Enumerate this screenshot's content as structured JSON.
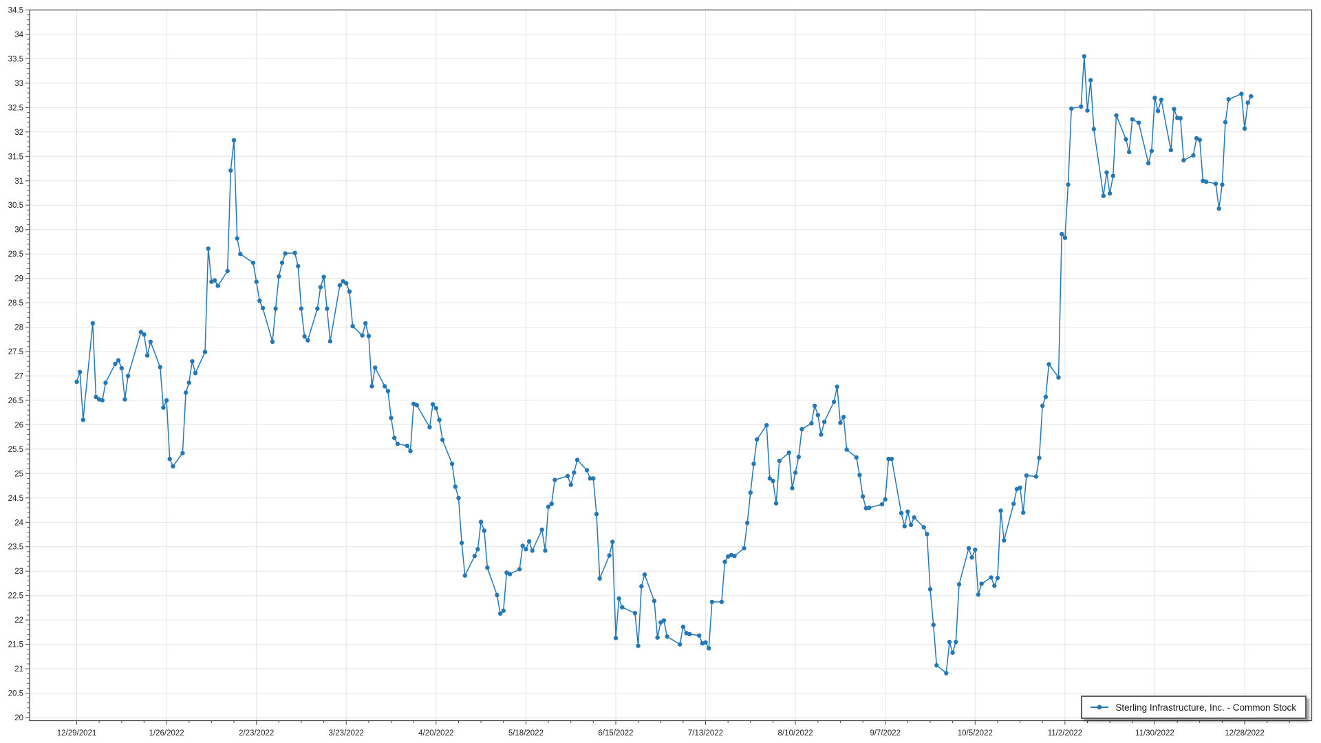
{
  "legend": {
    "label": "Sterling Infrastructure, Inc. - Common Stock"
  },
  "colors": {
    "series_line": "#2577b5",
    "gridline": "#e4e4e4",
    "plot_border": "#4a4a4a",
    "tick": "#4a4a4a",
    "label_text": "#1f1f1f",
    "background": "#ffffff"
  },
  "chart_data": {
    "type": "line",
    "title": "",
    "xlabel": "",
    "ylabel": "",
    "legend_position": "bottom-right",
    "grid": true,
    "markers": true,
    "series_name": "Sterling Infrastructure, Inc. - Common Stock",
    "ylim": [
      20,
      34.5
    ],
    "y_tick_step": 0.5,
    "y_minor_tick_step": 0.1,
    "y_tick_labels": [
      "20",
      "20.5",
      "21",
      "21.5",
      "22",
      "22.5",
      "23",
      "23.5",
      "24",
      "24.5",
      "25",
      "25.5",
      "26",
      "26.5",
      "27",
      "27.5",
      "28",
      "28.5",
      "29",
      "29.5",
      "30",
      "30.5",
      "31",
      "31.5",
      "32",
      "32.5",
      "33",
      "33.5",
      "34",
      "34.5"
    ],
    "x_minor_tick_step_days": 7,
    "x_major_ticks": [
      {
        "date": "2021-12-29",
        "label": "12/29/2021"
      },
      {
        "date": "2022-01-26",
        "label": "1/26/2022"
      },
      {
        "date": "2022-02-23",
        "label": "2/23/2022"
      },
      {
        "date": "2022-03-23",
        "label": "3/23/2022"
      },
      {
        "date": "2022-04-20",
        "label": "4/20/2022"
      },
      {
        "date": "2022-05-18",
        "label": "5/18/2022"
      },
      {
        "date": "2022-06-15",
        "label": "6/15/2022"
      },
      {
        "date": "2022-07-13",
        "label": "7/13/2022"
      },
      {
        "date": "2022-08-10",
        "label": "8/10/2022"
      },
      {
        "date": "2022-09-07",
        "label": "9/7/2022"
      },
      {
        "date": "2022-10-05",
        "label": "10/5/2022"
      },
      {
        "date": "2022-11-02",
        "label": "11/2/2022"
      },
      {
        "date": "2022-11-30",
        "label": "11/30/2022"
      },
      {
        "date": "2022-12-28",
        "label": "12/28/2022"
      }
    ],
    "dates": [
      "2021-12-29",
      "2021-12-30",
      "2021-12-31",
      "2022-01-03",
      "2022-01-04",
      "2022-01-05",
      "2022-01-06",
      "2022-01-07",
      "2022-01-10",
      "2022-01-11",
      "2022-01-12",
      "2022-01-13",
      "2022-01-14",
      "2022-01-18",
      "2022-01-19",
      "2022-01-20",
      "2022-01-21",
      "2022-01-24",
      "2022-01-25",
      "2022-01-26",
      "2022-01-27",
      "2022-01-28",
      "2022-01-31",
      "2022-02-01",
      "2022-02-02",
      "2022-02-03",
      "2022-02-04",
      "2022-02-07",
      "2022-02-08",
      "2022-02-09",
      "2022-02-10",
      "2022-02-11",
      "2022-02-14",
      "2022-02-15",
      "2022-02-16",
      "2022-02-17",
      "2022-02-18",
      "2022-02-22",
      "2022-02-23",
      "2022-02-24",
      "2022-02-25",
      "2022-02-28",
      "2022-03-01",
      "2022-03-02",
      "2022-03-03",
      "2022-03-04",
      "2022-03-07",
      "2022-03-08",
      "2022-03-09",
      "2022-03-10",
      "2022-03-11",
      "2022-03-14",
      "2022-03-15",
      "2022-03-16",
      "2022-03-17",
      "2022-03-18",
      "2022-03-21",
      "2022-03-22",
      "2022-03-23",
      "2022-03-24",
      "2022-03-25",
      "2022-03-28",
      "2022-03-29",
      "2022-03-30",
      "2022-03-31",
      "2022-04-01",
      "2022-04-04",
      "2022-04-05",
      "2022-04-06",
      "2022-04-07",
      "2022-04-08",
      "2022-04-11",
      "2022-04-12",
      "2022-04-13",
      "2022-04-14",
      "2022-04-18",
      "2022-04-19",
      "2022-04-20",
      "2022-04-21",
      "2022-04-22",
      "2022-04-25",
      "2022-04-26",
      "2022-04-27",
      "2022-04-28",
      "2022-04-29",
      "2022-05-02",
      "2022-05-03",
      "2022-05-04",
      "2022-05-05",
      "2022-05-06",
      "2022-05-09",
      "2022-05-10",
      "2022-05-11",
      "2022-05-12",
      "2022-05-13",
      "2022-05-16",
      "2022-05-17",
      "2022-05-18",
      "2022-05-19",
      "2022-05-20",
      "2022-05-23",
      "2022-05-24",
      "2022-05-25",
      "2022-05-26",
      "2022-05-27",
      "2022-05-31",
      "2022-06-01",
      "2022-06-02",
      "2022-06-03",
      "2022-06-06",
      "2022-06-07",
      "2022-06-08",
      "2022-06-09",
      "2022-06-10",
      "2022-06-13",
      "2022-06-14",
      "2022-06-15",
      "2022-06-16",
      "2022-06-17",
      "2022-06-21",
      "2022-06-22",
      "2022-06-23",
      "2022-06-24",
      "2022-06-27",
      "2022-06-28",
      "2022-06-29",
      "2022-06-30",
      "2022-07-01",
      "2022-07-05",
      "2022-07-06",
      "2022-07-07",
      "2022-07-08",
      "2022-07-11",
      "2022-07-12",
      "2022-07-13",
      "2022-07-14",
      "2022-07-15",
      "2022-07-18",
      "2022-07-19",
      "2022-07-20",
      "2022-07-21",
      "2022-07-22",
      "2022-07-25",
      "2022-07-26",
      "2022-07-27",
      "2022-07-28",
      "2022-07-29",
      "2022-08-01",
      "2022-08-02",
      "2022-08-03",
      "2022-08-04",
      "2022-08-05",
      "2022-08-08",
      "2022-08-09",
      "2022-08-10",
      "2022-08-11",
      "2022-08-12",
      "2022-08-15",
      "2022-08-16",
      "2022-08-17",
      "2022-08-18",
      "2022-08-19",
      "2022-08-22",
      "2022-08-23",
      "2022-08-24",
      "2022-08-25",
      "2022-08-26",
      "2022-08-29",
      "2022-08-30",
      "2022-08-31",
      "2022-09-01",
      "2022-09-02",
      "2022-09-06",
      "2022-09-07",
      "2022-09-08",
      "2022-09-09",
      "2022-09-12",
      "2022-09-13",
      "2022-09-14",
      "2022-09-15",
      "2022-09-16",
      "2022-09-19",
      "2022-09-20",
      "2022-09-21",
      "2022-09-22",
      "2022-09-23",
      "2022-09-26",
      "2022-09-27",
      "2022-09-28",
      "2022-09-29",
      "2022-09-30",
      "2022-10-03",
      "2022-10-04",
      "2022-10-05",
      "2022-10-06",
      "2022-10-07",
      "2022-10-10",
      "2022-10-11",
      "2022-10-12",
      "2022-10-13",
      "2022-10-14",
      "2022-10-17",
      "2022-10-18",
      "2022-10-19",
      "2022-10-20",
      "2022-10-21",
      "2022-10-24",
      "2022-10-25",
      "2022-10-26",
      "2022-10-27",
      "2022-10-28",
      "2022-10-31",
      "2022-11-01",
      "2022-11-02",
      "2022-11-03",
      "2022-11-04",
      "2022-11-07",
      "2022-11-08",
      "2022-11-09",
      "2022-11-10",
      "2022-11-11",
      "2022-11-14",
      "2022-11-15",
      "2022-11-16",
      "2022-11-17",
      "2022-11-18",
      "2022-11-21",
      "2022-11-22",
      "2022-11-23",
      "2022-11-25",
      "2022-11-28",
      "2022-11-29",
      "2022-11-30",
      "2022-12-01",
      "2022-12-02",
      "2022-12-05",
      "2022-12-06",
      "2022-12-07",
      "2022-12-08",
      "2022-12-09",
      "2022-12-12",
      "2022-12-13",
      "2022-12-14",
      "2022-12-15",
      "2022-12-16",
      "2022-12-19",
      "2022-12-20",
      "2022-12-21",
      "2022-12-22",
      "2022-12-23",
      "2022-12-27",
      "2022-12-28",
      "2022-12-29",
      "2022-12-30"
    ],
    "values": [
      26.88,
      27.08,
      26.1,
      28.08,
      26.57,
      26.52,
      26.5,
      26.86,
      27.25,
      27.32,
      27.16,
      26.52,
      27.0,
      27.9,
      27.85,
      27.42,
      27.7,
      27.18,
      26.35,
      26.5,
      25.3,
      25.15,
      25.42,
      26.66,
      26.86,
      27.3,
      27.06,
      27.49,
      29.61,
      28.93,
      28.96,
      28.85,
      29.15,
      31.21,
      31.83,
      29.82,
      29.5,
      29.32,
      28.93,
      28.54,
      28.39,
      27.7,
      28.38,
      29.04,
      29.32,
      29.51,
      29.52,
      29.25,
      28.38,
      27.81,
      27.73,
      28.38,
      28.82,
      29.03,
      28.38,
      27.71,
      28.86,
      28.94,
      28.9,
      28.73,
      28.02,
      27.83,
      28.08,
      27.82,
      26.79,
      27.17,
      26.79,
      26.69,
      26.14,
      25.73,
      25.61,
      25.57,
      25.46,
      26.43,
      26.4,
      25.95,
      26.42,
      26.34,
      26.1,
      25.69,
      25.2,
      24.73,
      24.5,
      23.58,
      22.91,
      23.31,
      23.45,
      24.01,
      23.83,
      23.07,
      22.51,
      22.13,
      22.19,
      22.97,
      22.94,
      23.04,
      23.52,
      23.45,
      23.61,
      23.42,
      23.85,
      23.42,
      24.32,
      24.38,
      24.87,
      24.95,
      24.77,
      25.02,
      25.28,
      25.07,
      24.9,
      24.9,
      24.17,
      22.85,
      23.32,
      23.6,
      21.63,
      22.44,
      22.26,
      22.14,
      21.47,
      22.69,
      22.93,
      22.39,
      21.64,
      21.95,
      21.99,
      21.66,
      21.5,
      21.86,
      21.73,
      21.71,
      21.68,
      21.52,
      21.54,
      21.42,
      22.37,
      22.37,
      23.19,
      23.3,
      23.33,
      23.31,
      23.47,
      23.99,
      24.61,
      25.2,
      25.7,
      25.99,
      24.9,
      24.85,
      24.39,
      25.26,
      25.43,
      24.7,
      25.02,
      25.34,
      25.91,
      26.03,
      26.39,
      26.2,
      25.8,
      26.06,
      26.47,
      26.78,
      26.04,
      26.16,
      25.49,
      25.33,
      24.97,
      24.53,
      24.29,
      24.3,
      24.37,
      24.47,
      25.3,
      25.3,
      24.19,
      23.92,
      24.22,
      23.95,
      24.1,
      23.9,
      23.76,
      22.63,
      21.9,
      21.07,
      20.91,
      21.55,
      21.33,
      21.55,
      22.73,
      23.47,
      23.28,
      23.44,
      22.52,
      22.74,
      22.87,
      22.7,
      22.86,
      24.24,
      23.63,
      24.38,
      24.68,
      24.71,
      24.2,
      24.96,
      24.94,
      25.32,
      26.39,
      26.57,
      27.24,
      26.97,
      29.91,
      29.83,
      30.92,
      32.48,
      32.52,
      33.55,
      32.44,
      33.06,
      32.06,
      30.69,
      31.17,
      30.74,
      31.1,
      32.34,
      31.85,
      31.59,
      32.26,
      32.19,
      31.36,
      31.61,
      32.7,
      32.43,
      32.66,
      31.63,
      32.47,
      32.29,
      32.28,
      31.42,
      31.52,
      31.87,
      31.84,
      31.0,
      30.98,
      30.94,
      30.43,
      30.92,
      32.2,
      32.67,
      32.78,
      32.07,
      32.6,
      32.73
    ]
  }
}
